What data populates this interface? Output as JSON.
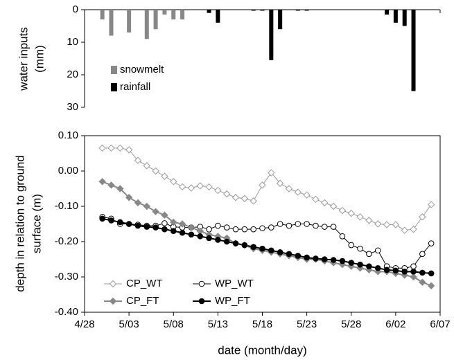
{
  "chart_data": [
    {
      "type": "bar",
      "y_label": [
        "water inputs",
        "(mm)"
      ],
      "ylim": [
        0,
        30
      ],
      "yticks": [
        0,
        10,
        20,
        30
      ],
      "y_inverted": true,
      "xlim": [
        "4/28",
        "6/07"
      ],
      "x": [
        "4/30",
        "5/01",
        "5/03",
        "5/05",
        "5/06",
        "5/07",
        "5/08",
        "5/09",
        "5/12",
        "5/13",
        "5/17",
        "5/18",
        "5/19",
        "5/20",
        "5/22",
        "5/23",
        "6/01",
        "6/02",
        "6/03",
        "6/04"
      ],
      "series": [
        {
          "name": "snowmelt",
          "color": "#888888",
          "values": [
            3,
            8,
            7,
            9,
            6,
            1.5,
            3,
            3,
            null,
            null,
            null,
            null,
            null,
            null,
            null,
            null,
            null,
            null,
            null,
            null
          ]
        },
        {
          "name": "rainfall",
          "color": "#000000",
          "values": [
            null,
            null,
            null,
            null,
            null,
            null,
            null,
            null,
            1,
            4,
            0.3,
            0.3,
            15.5,
            6,
            0.3,
            0.3,
            1.5,
            4,
            5,
            25
          ]
        }
      ],
      "legend": "lower-left"
    },
    {
      "type": "line",
      "x_label": "date (month/day)",
      "y_label": [
        "depth in relation to ground",
        "surface (m)"
      ],
      "xlim": [
        "4/28",
        "6/07"
      ],
      "xticks": [
        "4/28",
        "5/03",
        "5/08",
        "5/13",
        "5/18",
        "5/23",
        "5/28",
        "6/02",
        "6/07"
      ],
      "ylim": [
        -0.4,
        0.1
      ],
      "yticks": [
        {
          "value": 0.1,
          "label": "0.10"
        },
        {
          "value": 0,
          "label": "0.00"
        },
        {
          "value": -0.1,
          "label": "-0.10"
        },
        {
          "value": -0.2,
          "label": "-0.20"
        },
        {
          "value": -0.3,
          "label": "-0.30"
        },
        {
          "value": -0.4,
          "label": "-0.40"
        }
      ],
      "x": [
        "4/30",
        "5/01",
        "5/02",
        "5/03",
        "5/04",
        "5/05",
        "5/06",
        "5/07",
        "5/08",
        "5/09",
        "5/10",
        "5/11",
        "5/12",
        "5/13",
        "5/14",
        "5/15",
        "5/16",
        "5/17",
        "5/18",
        "5/19",
        "5/20",
        "5/21",
        "5/22",
        "5/23",
        "5/24",
        "5/25",
        "5/26",
        "5/27",
        "5/28",
        "5/29",
        "5/30",
        "5/31",
        "6/01",
        "6/02",
        "6/03",
        "6/04",
        "6/05",
        "6/06"
      ],
      "series": [
        {
          "name": "CP_WT",
          "color": "#999999",
          "marker": "diamond",
          "filled": false,
          "values": [
            0.065,
            0.065,
            0.065,
            0.06,
            0.03,
            0.015,
            0,
            -0.015,
            -0.03,
            -0.045,
            -0.048,
            -0.042,
            -0.045,
            -0.055,
            -0.065,
            -0.075,
            -0.078,
            -0.085,
            -0.04,
            -0.005,
            -0.035,
            -0.05,
            -0.06,
            -0.068,
            -0.08,
            -0.09,
            -0.1,
            -0.112,
            -0.12,
            -0.13,
            -0.14,
            -0.15,
            -0.152,
            -0.152,
            -0.168,
            -0.165,
            -0.13,
            -0.095
          ]
        },
        {
          "name": "WP_WT",
          "color": "#000000",
          "marker": "circle",
          "filled": false,
          "values": [
            -0.13,
            -0.135,
            -0.15,
            -0.15,
            -0.152,
            -0.155,
            -0.155,
            -0.148,
            -0.158,
            -0.16,
            -0.16,
            -0.158,
            -0.165,
            -0.155,
            -0.16,
            -0.165,
            -0.165,
            -0.165,
            -0.162,
            -0.16,
            -0.15,
            -0.155,
            -0.15,
            -0.15,
            -0.155,
            -0.158,
            -0.158,
            -0.185,
            -0.21,
            -0.22,
            -0.235,
            -0.225,
            -0.27,
            -0.275,
            -0.275,
            -0.27,
            -0.235,
            -0.205
          ]
        },
        {
          "name": "CP_FT",
          "color": "#888888",
          "marker": "diamond",
          "filled": true,
          "values": [
            -0.03,
            -0.04,
            -0.05,
            -0.075,
            -0.09,
            -0.1,
            -0.115,
            -0.125,
            -0.145,
            -0.15,
            -0.16,
            -0.17,
            -0.18,
            -0.185,
            -0.19,
            -0.205,
            -0.21,
            -0.22,
            -0.225,
            -0.23,
            -0.235,
            -0.24,
            -0.245,
            -0.25,
            -0.25,
            -0.255,
            -0.26,
            -0.265,
            -0.27,
            -0.275,
            -0.28,
            -0.285,
            -0.285,
            -0.29,
            -0.295,
            -0.3,
            -0.315,
            -0.325
          ]
        },
        {
          "name": "WP_FT",
          "color": "#000000",
          "marker": "circle",
          "filled": true,
          "values": [
            -0.135,
            -0.14,
            -0.145,
            -0.15,
            -0.155,
            -0.158,
            -0.16,
            -0.165,
            -0.17,
            -0.175,
            -0.18,
            -0.185,
            -0.19,
            -0.195,
            -0.2,
            -0.205,
            -0.21,
            -0.215,
            -0.22,
            -0.225,
            -0.23,
            -0.235,
            -0.24,
            -0.245,
            -0.248,
            -0.25,
            -0.252,
            -0.255,
            -0.26,
            -0.265,
            -0.27,
            -0.275,
            -0.28,
            -0.282,
            -0.285,
            -0.285,
            -0.288,
            -0.29
          ]
        }
      ],
      "legend": "lower-left"
    }
  ]
}
